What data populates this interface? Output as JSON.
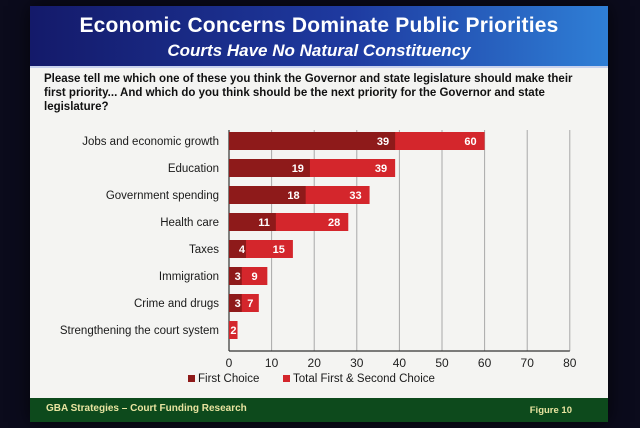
{
  "title": "Economic Concerns Dominate Public Priorities",
  "subtitle": "Courts Have No Natural Constituency",
  "question": "Please tell me which one of these you think the Governor and state legislature should make their first priority... And which do you think should be the next priority for the Governor and state legislature?",
  "footer": {
    "source": "GBA Strategies – Court Funding Research",
    "figure": "Figure 10"
  },
  "colors": {
    "first_choice": "#8e1a1a",
    "total": "#d4262c",
    "header_start": "#141a6a",
    "header_end": "#2f7fd6",
    "footer": "#0d4a1c"
  },
  "chart_data": {
    "type": "bar",
    "orientation": "horizontal",
    "categories": [
      "Jobs and economic growth",
      "Education",
      "Government spending",
      "Health care",
      "Taxes",
      "Immigration",
      "Crime and drugs",
      "Strengthening the court system"
    ],
    "series": [
      {
        "name": "First Choice",
        "values": [
          39,
          19,
          18,
          11,
          4,
          3,
          3,
          0
        ]
      },
      {
        "name": "Total First & Second Choice",
        "values": [
          60,
          39,
          33,
          28,
          15,
          9,
          7,
          2
        ]
      }
    ],
    "value_labels": [
      {
        "first": "39",
        "total": "60"
      },
      {
        "first": "19",
        "total": "39"
      },
      {
        "first": "18",
        "total": "33"
      },
      {
        "first": "11",
        "total": "28"
      },
      {
        "first": "4",
        "total": "15"
      },
      {
        "first": "3",
        "total": "9"
      },
      {
        "first": "3",
        "total": "7"
      },
      {
        "first": "",
        "total": "2"
      }
    ],
    "xlim": [
      0,
      80
    ],
    "xticks": [
      "0",
      "10",
      "20",
      "30",
      "40",
      "50",
      "60",
      "70",
      "80"
    ],
    "grid": true,
    "legend_position": "bottom",
    "legend": [
      "First Choice",
      "Total First & Second Choice"
    ]
  }
}
